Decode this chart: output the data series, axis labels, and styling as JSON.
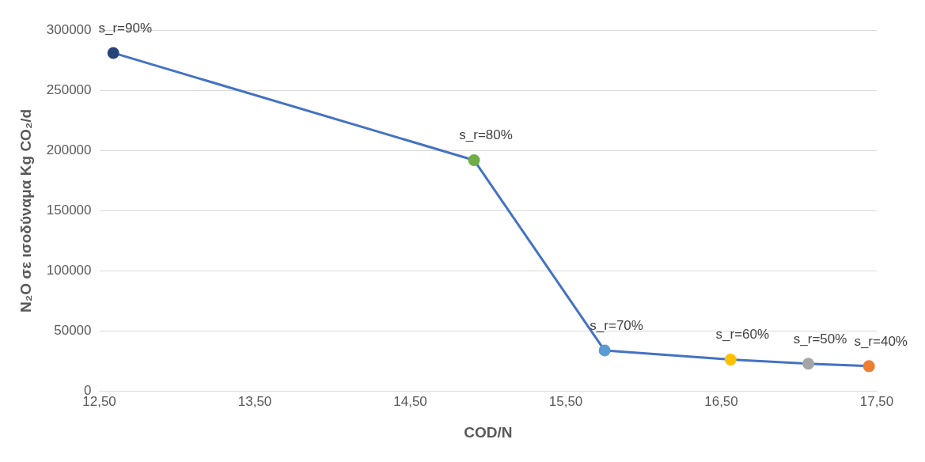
{
  "chart_data": {
    "type": "line",
    "xlabel": "COD/N",
    "ylabel": "N₂O σε ισοδύναμα Kg CO₂/d",
    "x": [
      12.59,
      14.91,
      15.75,
      16.56,
      17.06,
      17.45
    ],
    "series": [
      {
        "color": "#4472c4",
        "values": [
          281000,
          192000,
          34000,
          26500,
          23000,
          21000
        ],
        "colors": [
          "#264478",
          "#70ad47",
          "#5b9bd5",
          "#ffc000",
          "#a5a5a5",
          "#ed7d31"
        ]
      }
    ],
    "xlim": [
      12.5,
      17.5
    ],
    "xticks": [
      {
        "value": 12.5,
        "label": "12,50"
      },
      {
        "value": 13.5,
        "label": "13,50"
      },
      {
        "value": 14.5,
        "label": "14,50"
      },
      {
        "value": 15.5,
        "label": "15,50"
      },
      {
        "value": 16.5,
        "label": "16,50"
      },
      {
        "value": 17.5,
        "label": "17,50"
      }
    ],
    "ylim": [
      0,
      300000
    ],
    "yticks": [
      0,
      50000,
      100000,
      150000,
      200000,
      250000,
      300000
    ],
    "grid": "y",
    "legend": false,
    "marker": "circle",
    "line_style": "solid",
    "annotations": [
      {
        "text": "s_r=90%",
        "x": 12.59,
        "y": 281000
      },
      {
        "text": "s_r=80%",
        "x": 14.91,
        "y": 192000
      },
      {
        "text": "s_r=70%",
        "x": 15.75,
        "y": 34000
      },
      {
        "text": "s_r=60%",
        "x": 16.56,
        "y": 26500
      },
      {
        "text": "s_r=50%",
        "x": 17.06,
        "y": 23000
      },
      {
        "text": "s_r=40%",
        "x": 17.45,
        "y": 21000
      }
    ]
  }
}
